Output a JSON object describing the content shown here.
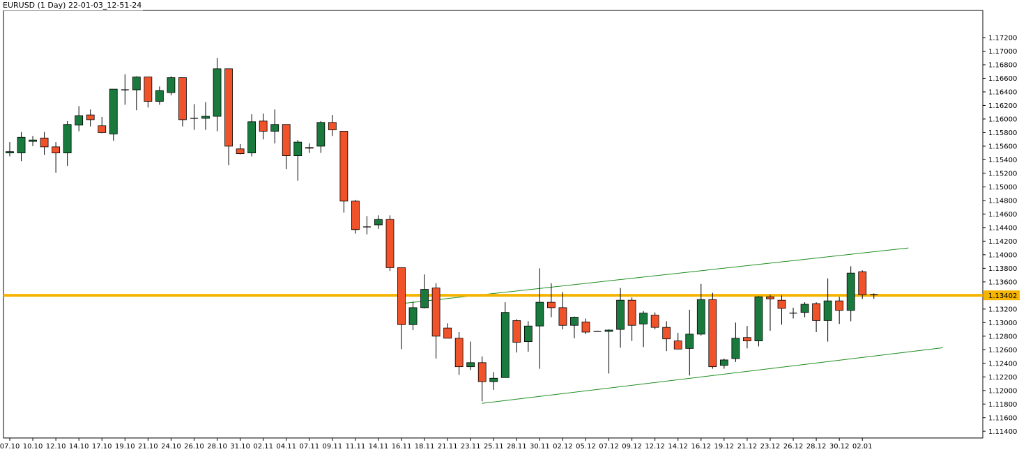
{
  "chart_data": {
    "type": "candlestick",
    "title": "EURUSD (1 Day) 22-01-03_12-51-24",
    "colors": {
      "up": "#1a7a3e",
      "down": "#f0532a",
      "outline": "#000000",
      "horizontal_line": "#f5b400",
      "channel": "#1e8c1e",
      "price_label_bg": "#f5b400"
    },
    "ylim": [
      1.113,
      1.176
    ],
    "y_ticks": [
      {
        "value": 1.172,
        "label": "1.17200"
      },
      {
        "value": 1.17,
        "label": "1.17000"
      },
      {
        "value": 1.168,
        "label": "1.16800"
      },
      {
        "value": 1.166,
        "label": "1.16600"
      },
      {
        "value": 1.164,
        "label": "1.16400"
      },
      {
        "value": 1.162,
        "label": "1.16200"
      },
      {
        "value": 1.16,
        "label": "1.16000"
      },
      {
        "value": 1.158,
        "label": "1.15800"
      },
      {
        "value": 1.156,
        "label": "1.15600"
      },
      {
        "value": 1.154,
        "label": "1.15400"
      },
      {
        "value": 1.152,
        "label": "1.15200"
      },
      {
        "value": 1.15,
        "label": "1.15000"
      },
      {
        "value": 1.148,
        "label": "1.14800"
      },
      {
        "value": 1.146,
        "label": "1.14600"
      },
      {
        "value": 1.144,
        "label": "1.14400"
      },
      {
        "value": 1.142,
        "label": "1.14200"
      },
      {
        "value": 1.14,
        "label": "1.14000"
      },
      {
        "value": 1.138,
        "label": "1.13800"
      },
      {
        "value": 1.136,
        "label": "1.13600"
      },
      {
        "value": 1.132,
        "label": "1.13200"
      },
      {
        "value": 1.13,
        "label": "1.13000"
      },
      {
        "value": 1.128,
        "label": "1.12800"
      },
      {
        "value": 1.126,
        "label": "1.12600"
      },
      {
        "value": 1.124,
        "label": "1.12400"
      },
      {
        "value": 1.122,
        "label": "1.12200"
      },
      {
        "value": 1.12,
        "label": "1.12000"
      },
      {
        "value": 1.118,
        "label": "1.11800"
      },
      {
        "value": 1.116,
        "label": "1.11600"
      },
      {
        "value": 1.114,
        "label": "1.11400"
      }
    ],
    "x_ticks": [
      {
        "index": 0,
        "label": "07.10"
      },
      {
        "index": 2,
        "label": "10.10"
      },
      {
        "index": 4,
        "label": "12.10"
      },
      {
        "index": 6,
        "label": "14.10"
      },
      {
        "index": 8,
        "label": "17.10"
      },
      {
        "index": 10,
        "label": "19.10"
      },
      {
        "index": 12,
        "label": "21.10"
      },
      {
        "index": 14,
        "label": "24.10"
      },
      {
        "index": 16,
        "label": "26.10"
      },
      {
        "index": 18,
        "label": "28.10"
      },
      {
        "index": 20,
        "label": "31.10"
      },
      {
        "index": 22,
        "label": "02.11"
      },
      {
        "index": 24,
        "label": "04.11"
      },
      {
        "index": 26,
        "label": "07.11"
      },
      {
        "index": 28,
        "label": "09.11"
      },
      {
        "index": 30,
        "label": "11.11"
      },
      {
        "index": 32,
        "label": "14.11"
      },
      {
        "index": 34,
        "label": "16.11"
      },
      {
        "index": 36,
        "label": "18.11"
      },
      {
        "index": 38,
        "label": "21.11"
      },
      {
        "index": 40,
        "label": "23.11"
      },
      {
        "index": 42,
        "label": "25.11"
      },
      {
        "index": 44,
        "label": "28.11"
      },
      {
        "index": 46,
        "label": "30.11"
      },
      {
        "index": 48,
        "label": "02.12"
      },
      {
        "index": 50,
        "label": "05.12"
      },
      {
        "index": 52,
        "label": "07.12"
      },
      {
        "index": 54,
        "label": "09.12"
      },
      {
        "index": 56,
        "label": "12.12"
      },
      {
        "index": 58,
        "label": "14.12"
      },
      {
        "index": 60,
        "label": "16.12"
      },
      {
        "index": 62,
        "label": "19.12"
      },
      {
        "index": 64,
        "label": "21.12"
      },
      {
        "index": 66,
        "label": "23.12"
      },
      {
        "index": 68,
        "label": "26.12"
      },
      {
        "index": 70,
        "label": "28.12"
      },
      {
        "index": 72,
        "label": "30.12"
      },
      {
        "index": 74,
        "label": "02.01"
      }
    ],
    "candles": [
      {
        "o": 1.155,
        "h": 1.1566,
        "l": 1.1545,
        "c": 1.1552
      },
      {
        "o": 1.155,
        "h": 1.1581,
        "l": 1.1538,
        "c": 1.1573
      },
      {
        "o": 1.1567,
        "h": 1.1575,
        "l": 1.156,
        "c": 1.1569
      },
      {
        "o": 1.1572,
        "h": 1.1581,
        "l": 1.1547,
        "c": 1.1559
      },
      {
        "o": 1.1559,
        "h": 1.1566,
        "l": 1.1521,
        "c": 1.155
      },
      {
        "o": 1.155,
        "h": 1.1597,
        "l": 1.1531,
        "c": 1.1592
      },
      {
        "o": 1.1591,
        "h": 1.1619,
        "l": 1.1582,
        "c": 1.1605
      },
      {
        "o": 1.1606,
        "h": 1.1614,
        "l": 1.1589,
        "c": 1.1599
      },
      {
        "o": 1.159,
        "h": 1.1603,
        "l": 1.1579,
        "c": 1.158
      },
      {
        "o": 1.1578,
        "h": 1.1643,
        "l": 1.1568,
        "c": 1.1644
      },
      {
        "o": 1.1643,
        "h": 1.1666,
        "l": 1.1621,
        "c": 1.1643
      },
      {
        "o": 1.1643,
        "h": 1.1663,
        "l": 1.1613,
        "c": 1.1662
      },
      {
        "o": 1.1662,
        "h": 1.1662,
        "l": 1.1617,
        "c": 1.1626
      },
      {
        "o": 1.1626,
        "h": 1.1648,
        "l": 1.1621,
        "c": 1.1642
      },
      {
        "o": 1.1639,
        "h": 1.1663,
        "l": 1.1635,
        "c": 1.1661
      },
      {
        "o": 1.1661,
        "h": 1.1661,
        "l": 1.1589,
        "c": 1.1599
      },
      {
        "o": 1.1601,
        "h": 1.1622,
        "l": 1.1584,
        "c": 1.1601
      },
      {
        "o": 1.1601,
        "h": 1.1625,
        "l": 1.1584,
        "c": 1.1604
      },
      {
        "o": 1.1604,
        "h": 1.169,
        "l": 1.1582,
        "c": 1.1674
      },
      {
        "o": 1.1674,
        "h": 1.1674,
        "l": 1.1532,
        "c": 1.156
      },
      {
        "o": 1.1556,
        "h": 1.1563,
        "l": 1.1548,
        "c": 1.1549
      },
      {
        "o": 1.155,
        "h": 1.1607,
        "l": 1.1545,
        "c": 1.1596
      },
      {
        "o": 1.1597,
        "h": 1.1608,
        "l": 1.157,
        "c": 1.1582
      },
      {
        "o": 1.1582,
        "h": 1.1614,
        "l": 1.1564,
        "c": 1.1592
      },
      {
        "o": 1.1592,
        "h": 1.1592,
        "l": 1.1526,
        "c": 1.1546
      },
      {
        "o": 1.1546,
        "h": 1.1569,
        "l": 1.1509,
        "c": 1.1566
      },
      {
        "o": 1.1558,
        "h": 1.1564,
        "l": 1.155,
        "c": 1.1557
      },
      {
        "o": 1.156,
        "h": 1.1597,
        "l": 1.155,
        "c": 1.1595
      },
      {
        "o": 1.1595,
        "h": 1.1606,
        "l": 1.1575,
        "c": 1.1584
      },
      {
        "o": 1.1582,
        "h": 1.1582,
        "l": 1.1462,
        "c": 1.1479
      },
      {
        "o": 1.1479,
        "h": 1.1481,
        "l": 1.1431,
        "c": 1.1437
      },
      {
        "o": 1.1441,
        "h": 1.1457,
        "l": 1.143,
        "c": 1.1441
      },
      {
        "o": 1.1444,
        "h": 1.1458,
        "l": 1.1438,
        "c": 1.1452
      },
      {
        "o": 1.1452,
        "h": 1.1458,
        "l": 1.1376,
        "c": 1.1381
      },
      {
        "o": 1.1381,
        "h": 1.1381,
        "l": 1.1261,
        "c": 1.1297
      },
      {
        "o": 1.1297,
        "h": 1.1331,
        "l": 1.1289,
        "c": 1.1322
      },
      {
        "o": 1.1322,
        "h": 1.1371,
        "l": 1.1321,
        "c": 1.1349
      },
      {
        "o": 1.1351,
        "h": 1.1358,
        "l": 1.1247,
        "c": 1.128
      },
      {
        "o": 1.1292,
        "h": 1.1299,
        "l": 1.1277,
        "c": 1.1277
      },
      {
        "o": 1.1277,
        "h": 1.1286,
        "l": 1.1223,
        "c": 1.1235
      },
      {
        "o": 1.1235,
        "h": 1.1272,
        "l": 1.123,
        "c": 1.1241
      },
      {
        "o": 1.1241,
        "h": 1.125,
        "l": 1.1184,
        "c": 1.1213
      },
      {
        "o": 1.1213,
        "h": 1.1227,
        "l": 1.1201,
        "c": 1.1218
      },
      {
        "o": 1.1219,
        "h": 1.133,
        "l": 1.122,
        "c": 1.1315
      },
      {
        "o": 1.1303,
        "h": 1.1305,
        "l": 1.1256,
        "c": 1.1271
      },
      {
        "o": 1.1272,
        "h": 1.1302,
        "l": 1.1257,
        "c": 1.1295
      },
      {
        "o": 1.1295,
        "h": 1.138,
        "l": 1.1232,
        "c": 1.133
      },
      {
        "o": 1.133,
        "h": 1.1358,
        "l": 1.1308,
        "c": 1.1322
      },
      {
        "o": 1.1322,
        "h": 1.1345,
        "l": 1.129,
        "c": 1.1296
      },
      {
        "o": 1.1296,
        "h": 1.1309,
        "l": 1.1277,
        "c": 1.1308
      },
      {
        "o": 1.1301,
        "h": 1.1306,
        "l": 1.1283,
        "c": 1.1286
      },
      {
        "o": 1.1287,
        "h": 1.1288,
        "l": 1.1287,
        "c": 1.1287
      },
      {
        "o": 1.1287,
        "h": 1.129,
        "l": 1.1225,
        "c": 1.1289
      },
      {
        "o": 1.129,
        "h": 1.1351,
        "l": 1.1263,
        "c": 1.1333
      },
      {
        "o": 1.1333,
        "h": 1.1337,
        "l": 1.1273,
        "c": 1.1296
      },
      {
        "o": 1.1298,
        "h": 1.1317,
        "l": 1.1264,
        "c": 1.1314
      },
      {
        "o": 1.1311,
        "h": 1.1315,
        "l": 1.129,
        "c": 1.1293
      },
      {
        "o": 1.1293,
        "h": 1.1302,
        "l": 1.1258,
        "c": 1.1276
      },
      {
        "o": 1.1273,
        "h": 1.1285,
        "l": 1.1262,
        "c": 1.1261
      },
      {
        "o": 1.1262,
        "h": 1.1319,
        "l": 1.1222,
        "c": 1.1283
      },
      {
        "o": 1.1283,
        "h": 1.1357,
        "l": 1.1281,
        "c": 1.1334
      },
      {
        "o": 1.1334,
        "h": 1.1344,
        "l": 1.1232,
        "c": 1.1235
      },
      {
        "o": 1.1237,
        "h": 1.1247,
        "l": 1.1232,
        "c": 1.1245
      },
      {
        "o": 1.1247,
        "h": 1.13,
        "l": 1.1242,
        "c": 1.1277
      },
      {
        "o": 1.1278,
        "h": 1.1295,
        "l": 1.1262,
        "c": 1.1273
      },
      {
        "o": 1.1273,
        "h": 1.1339,
        "l": 1.1265,
        "c": 1.1338
      },
      {
        "o": 1.1338,
        "h": 1.1341,
        "l": 1.1288,
        "c": 1.1335
      },
      {
        "o": 1.1333,
        "h": 1.134,
        "l": 1.1297,
        "c": 1.1321
      },
      {
        "o": 1.1314,
        "h": 1.1322,
        "l": 1.1306,
        "c": 1.1314
      },
      {
        "o": 1.1315,
        "h": 1.133,
        "l": 1.1308,
        "c": 1.1327
      },
      {
        "o": 1.1328,
        "h": 1.133,
        "l": 1.1286,
        "c": 1.1303
      },
      {
        "o": 1.1303,
        "h": 1.1365,
        "l": 1.1272,
        "c": 1.1332
      },
      {
        "o": 1.1332,
        "h": 1.1338,
        "l": 1.1298,
        "c": 1.1318
      },
      {
        "o": 1.1318,
        "h": 1.1383,
        "l": 1.1302,
        "c": 1.1373
      },
      {
        "o": 1.1375,
        "h": 1.1377,
        "l": 1.1335,
        "c": 1.1341
      },
      {
        "o": 1.1341,
        "h": 1.1343,
        "l": 1.1335,
        "c": 1.1341
      }
    ],
    "horizontal_line": {
      "value": 1.13402,
      "label": "1.13402"
    },
    "channel_lines": [
      {
        "x0": 34,
        "y0": 1.1328,
        "x1": 78,
        "y1": 1.141
      },
      {
        "x0": 41,
        "y0": 1.1181,
        "x1": 81,
        "y1": 1.1263
      }
    ]
  }
}
